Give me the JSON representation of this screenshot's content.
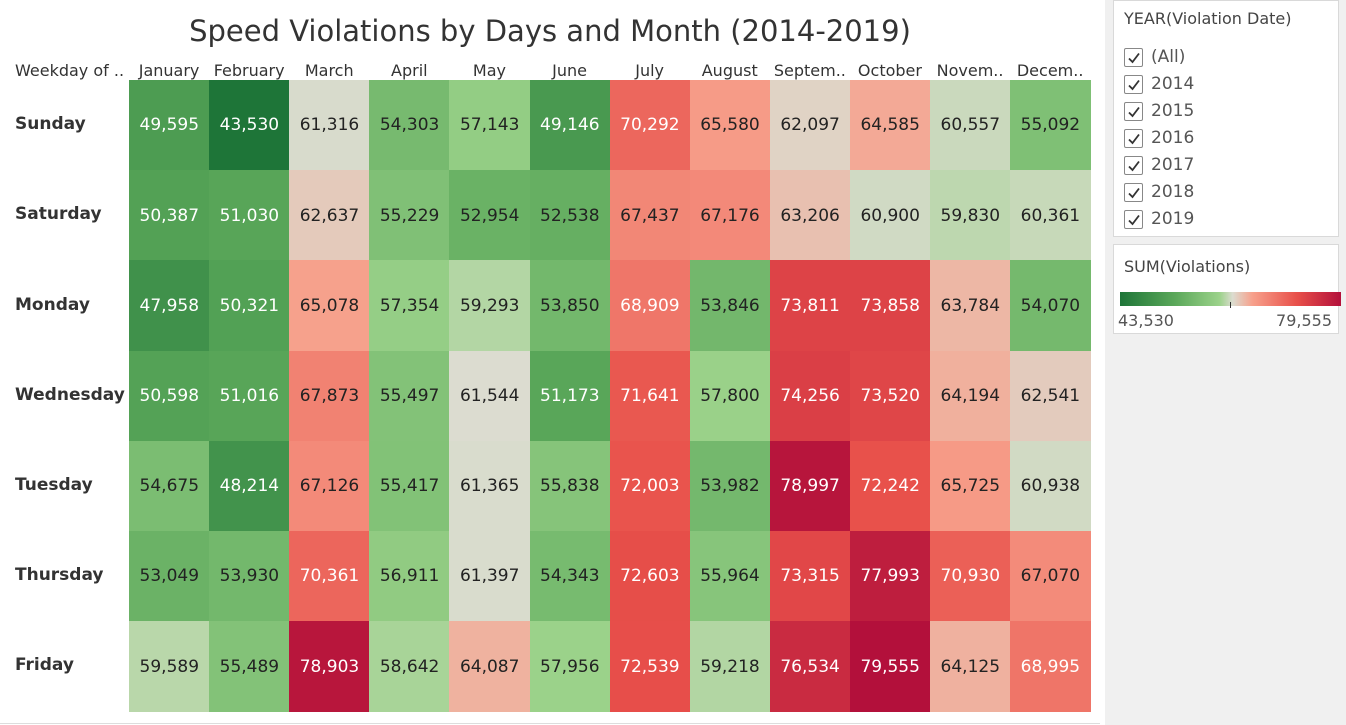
{
  "chart_data": {
    "type": "heatmap",
    "title": "Speed Violations by Days and Month (2014-2019)",
    "row_header": "Weekday of ..",
    "columns": [
      "January",
      "February",
      "March",
      "April",
      "May",
      "June",
      "July",
      "August",
      "Septem..",
      "October",
      "Novem..",
      "Decem.."
    ],
    "rows": [
      "Sunday",
      "Saturday",
      "Monday",
      "Wednesday",
      "Tuesday",
      "Thursday",
      "Friday"
    ],
    "values": [
      [
        49595,
        43530,
        61316,
        54303,
        57143,
        49146,
        70292,
        65580,
        62097,
        64585,
        60557,
        55092
      ],
      [
        50387,
        51030,
        62637,
        55229,
        52954,
        52538,
        67437,
        67176,
        63206,
        60900,
        59830,
        60361
      ],
      [
        47958,
        50321,
        65078,
        57354,
        59293,
        53850,
        68909,
        53846,
        73811,
        73858,
        63784,
        54070
      ],
      [
        50598,
        51016,
        67873,
        55497,
        61544,
        51173,
        71641,
        57800,
        74256,
        73520,
        64194,
        62541
      ],
      [
        54675,
        48214,
        67126,
        55417,
        61365,
        55838,
        72003,
        53982,
        78997,
        72242,
        65725,
        60938
      ],
      [
        53049,
        53930,
        70361,
        56911,
        61397,
        54343,
        72603,
        55964,
        73315,
        77993,
        70930,
        67070
      ],
      [
        59589,
        55489,
        78903,
        58642,
        64087,
        57956,
        72539,
        59218,
        76534,
        79555,
        64125,
        68995
      ]
    ],
    "color_scale": {
      "min": 43530,
      "max": 79555,
      "stops": [
        "#1e7538",
        "#5ba85a",
        "#9bd28a",
        "#dcdcd0",
        "#f7a08b",
        "#e8504a",
        "#b3103b"
      ]
    }
  },
  "filter": {
    "title": "YEAR(Violation Date)",
    "items": [
      {
        "label": "(All)",
        "checked": true
      },
      {
        "label": "2014",
        "checked": true
      },
      {
        "label": "2015",
        "checked": true
      },
      {
        "label": "2016",
        "checked": true
      },
      {
        "label": "2017",
        "checked": true
      },
      {
        "label": "2018",
        "checked": true
      },
      {
        "label": "2019",
        "checked": true
      }
    ]
  },
  "legend": {
    "title": "SUM(Violations)",
    "min_label": "43,530",
    "max_label": "79,555"
  }
}
